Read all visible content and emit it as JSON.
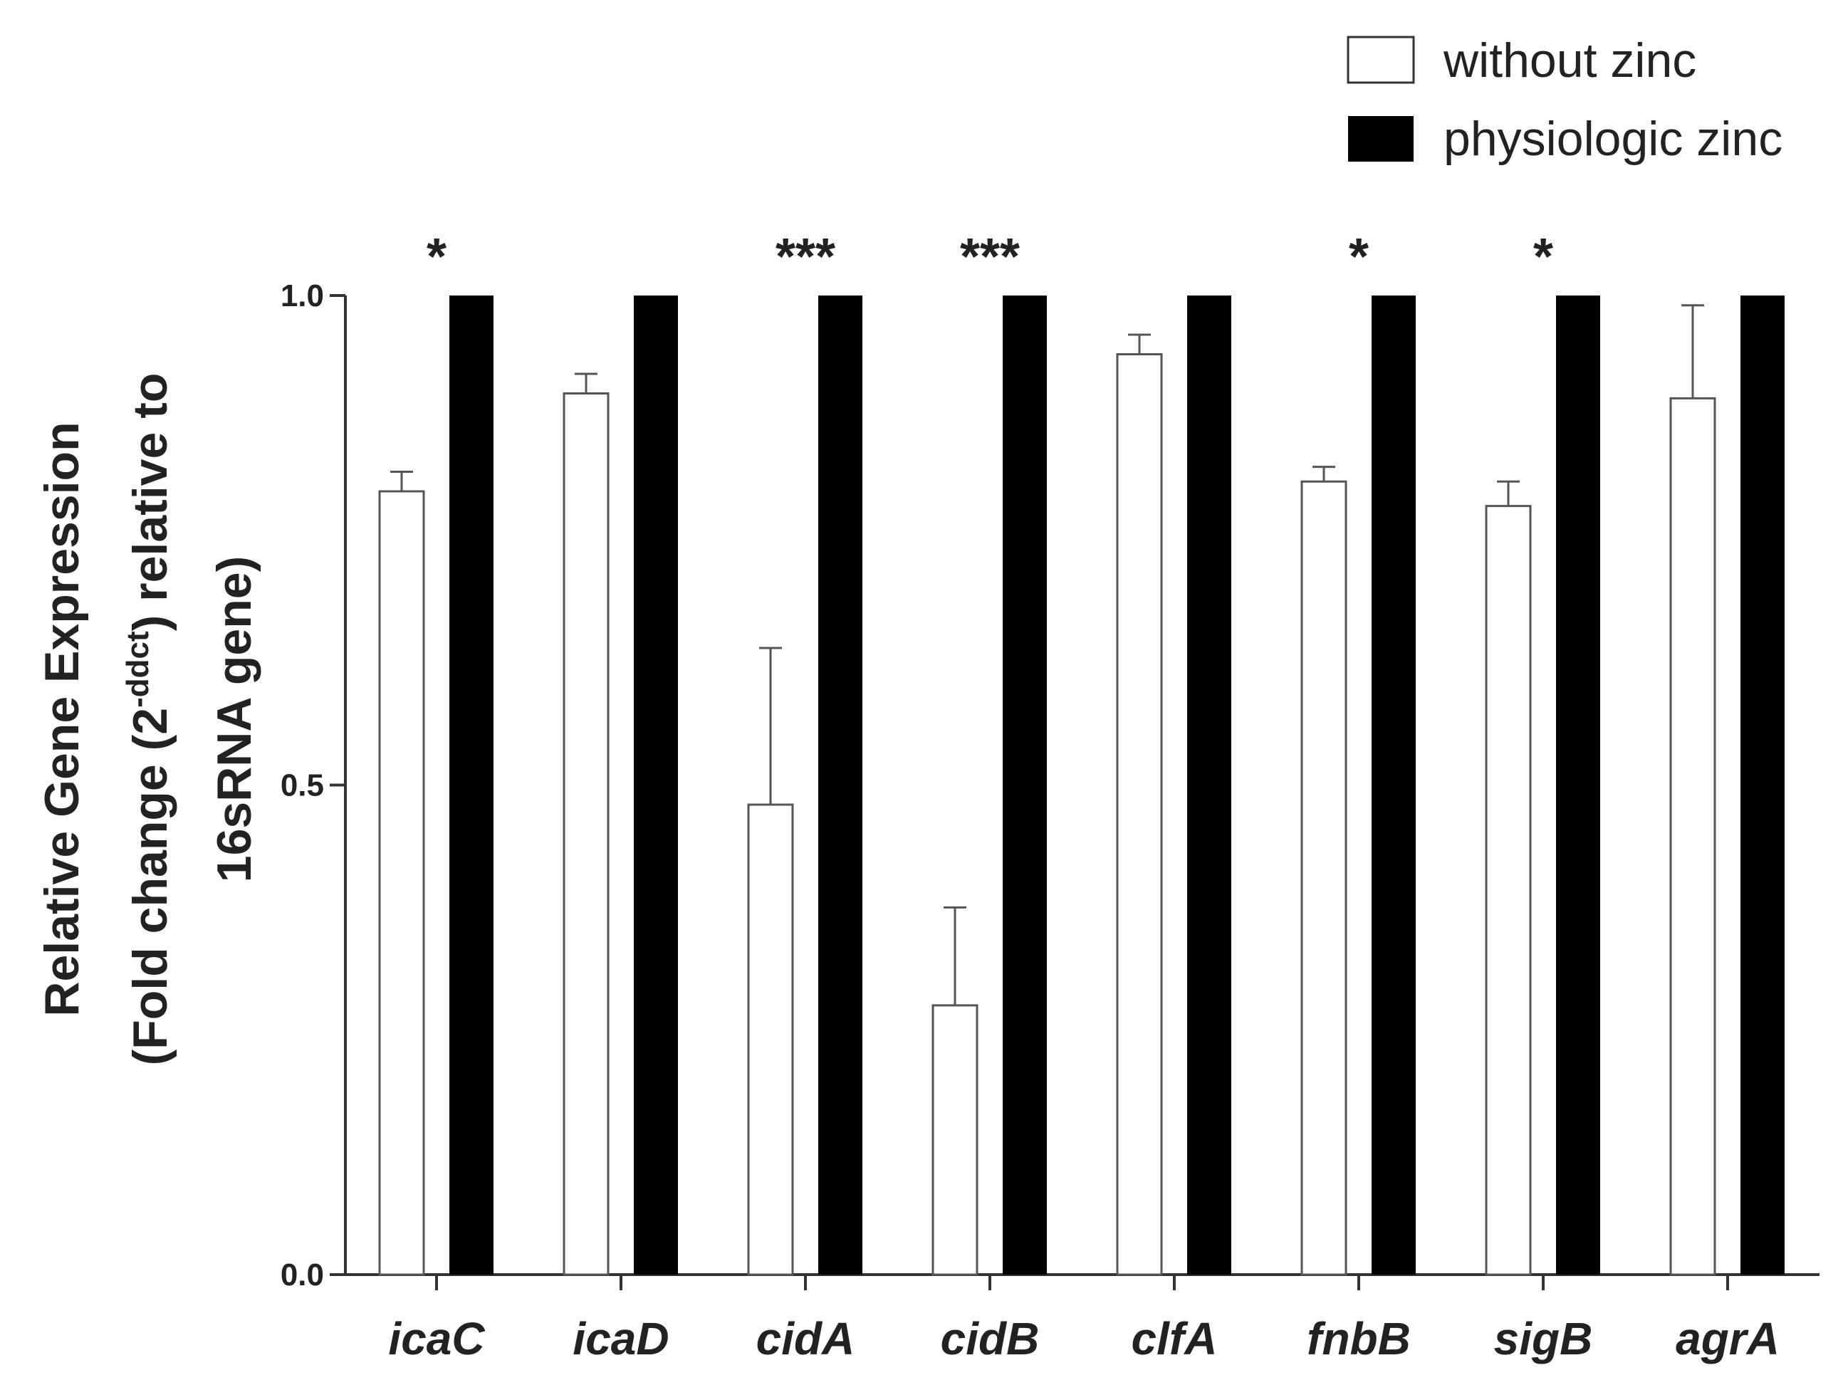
{
  "chart_data": {
    "type": "bar",
    "categories": [
      "icaC",
      "icaD",
      "cidA",
      "cidB",
      "clfA",
      "fnbB",
      "sigB",
      "agrA"
    ],
    "series": [
      {
        "name": "without zinc",
        "color": "#ffffff",
        "values": [
          0.8,
          0.9,
          0.48,
          0.275,
          0.94,
          0.81,
          0.785,
          0.895
        ],
        "error_upper": [
          0.82,
          0.92,
          0.64,
          0.375,
          0.96,
          0.825,
          0.81,
          0.99
        ]
      },
      {
        "name": "physiologic zinc",
        "color": "#000000",
        "values": [
          1.0,
          1.0,
          1.0,
          1.0,
          1.0,
          1.0,
          1.0,
          1.0
        ]
      }
    ],
    "significance": [
      "*",
      "",
      "***",
      "***",
      "",
      "*",
      "*",
      ""
    ],
    "ylabel_line1": "Relative Gene Expression",
    "ylabel_line2_before": "(Fold change (2",
    "ylabel_line2_sup": "-ddct",
    "ylabel_line2_after": ") relative to",
    "ylabel_line3": "16sRNA gene)",
    "yticks": [
      "0.0",
      "0.5",
      "1.0"
    ],
    "ylim": [
      0,
      1.0
    ],
    "legend_position": "top-right",
    "grid": false
  }
}
